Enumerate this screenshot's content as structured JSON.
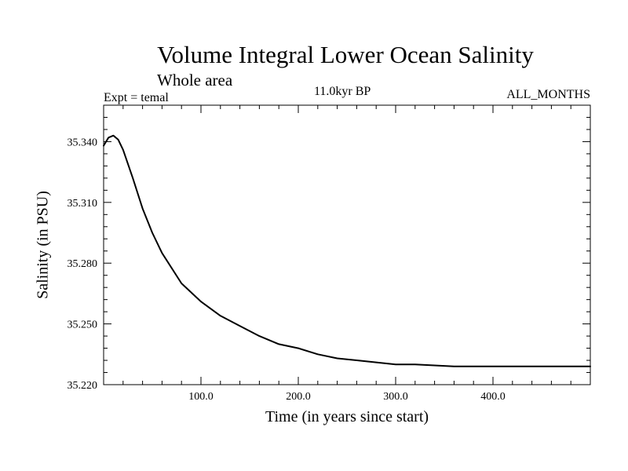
{
  "chart_data": {
    "type": "line",
    "title": "Volume Integral Lower Ocean Salinity",
    "subtitle": "Whole area",
    "experiment": "Expt = temal",
    "period": "11.0kyr BP",
    "months": "ALL_MONTHS",
    "xlabel": "Time (in years since start)",
    "ylabel": "Salinity (in PSU)",
    "xlim": [
      0,
      500
    ],
    "ylim": [
      35.22,
      35.358
    ],
    "x_ticks": [
      100,
      200,
      300,
      400
    ],
    "x_tick_labels": [
      "100.0",
      "200.0",
      "300.0",
      "400.0"
    ],
    "y_ticks": [
      35.22,
      35.25,
      35.28,
      35.31,
      35.34
    ],
    "y_tick_labels": [
      "35.220",
      "35.250",
      "35.280",
      "35.310",
      "35.340"
    ],
    "series": [
      {
        "name": "salinity",
        "color": "#000000",
        "x": [
          0,
          5,
          10,
          15,
          20,
          30,
          40,
          50,
          60,
          80,
          100,
          120,
          140,
          160,
          180,
          200,
          220,
          240,
          260,
          280,
          300,
          320,
          340,
          360,
          380,
          400,
          420,
          440,
          460,
          480,
          500
        ],
        "y": [
          35.338,
          35.342,
          35.343,
          35.341,
          35.336,
          35.322,
          35.307,
          35.295,
          35.285,
          35.27,
          35.261,
          35.254,
          35.249,
          35.244,
          35.24,
          35.238,
          35.235,
          35.233,
          35.232,
          35.231,
          35.23,
          35.23,
          35.2295,
          35.229,
          35.229,
          35.229,
          35.229,
          35.229,
          35.229,
          35.229,
          35.229
        ]
      }
    ]
  }
}
